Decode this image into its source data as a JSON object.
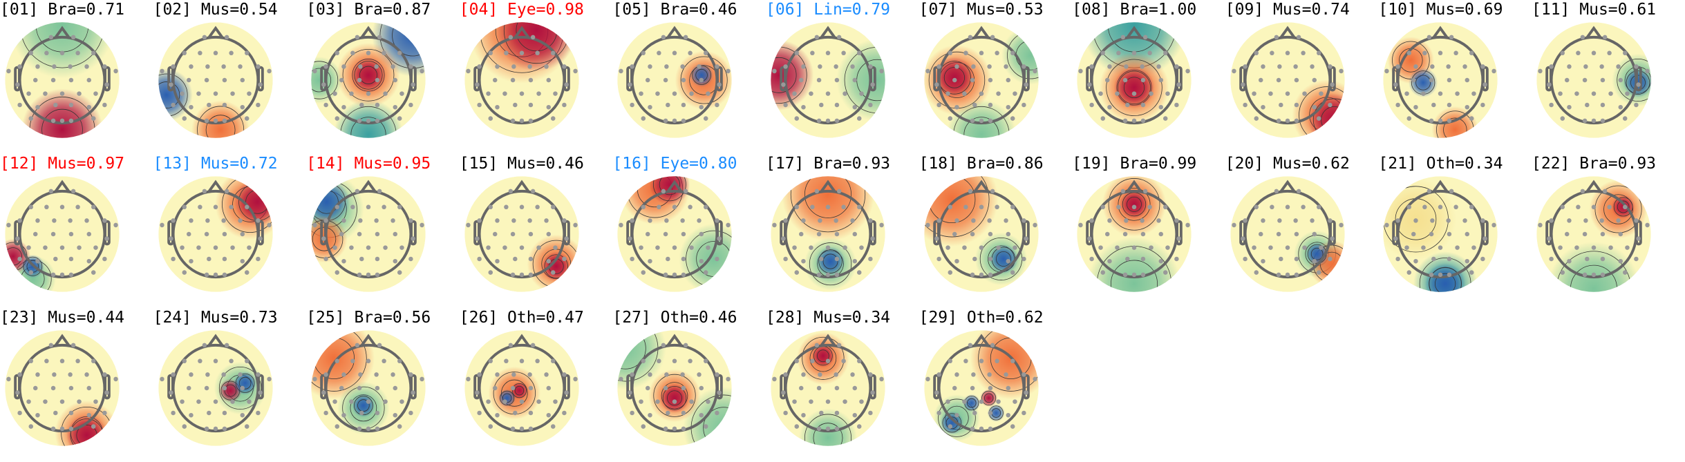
{
  "colors": {
    "default": "#000000",
    "red": "#ff0000",
    "blue": "#1a8cff"
  },
  "colormap": "Spectral_r",
  "components": [
    {
      "index": "01",
      "label": "Bra",
      "score": "0.71",
      "color": "default"
    },
    {
      "index": "02",
      "label": "Mus",
      "score": "0.54",
      "color": "default"
    },
    {
      "index": "03",
      "label": "Bra",
      "score": "0.87",
      "color": "default"
    },
    {
      "index": "04",
      "label": "Eye",
      "score": "0.98",
      "color": "red"
    },
    {
      "index": "05",
      "label": "Bra",
      "score": "0.46",
      "color": "default"
    },
    {
      "index": "06",
      "label": "Lin",
      "score": "0.79",
      "color": "blue"
    },
    {
      "index": "07",
      "label": "Mus",
      "score": "0.53",
      "color": "default"
    },
    {
      "index": "08",
      "label": "Bra",
      "score": "1.00",
      "color": "default"
    },
    {
      "index": "09",
      "label": "Mus",
      "score": "0.74",
      "color": "default"
    },
    {
      "index": "10",
      "label": "Mus",
      "score": "0.69",
      "color": "default"
    },
    {
      "index": "11",
      "label": "Mus",
      "score": "0.61",
      "color": "default"
    },
    {
      "index": "12",
      "label": "Mus",
      "score": "0.97",
      "color": "red"
    },
    {
      "index": "13",
      "label": "Mus",
      "score": "0.72",
      "color": "blue"
    },
    {
      "index": "14",
      "label": "Mus",
      "score": "0.95",
      "color": "red"
    },
    {
      "index": "15",
      "label": "Mus",
      "score": "0.46",
      "color": "default"
    },
    {
      "index": "16",
      "label": "Eye",
      "score": "0.80",
      "color": "blue"
    },
    {
      "index": "17",
      "label": "Bra",
      "score": "0.93",
      "color": "default"
    },
    {
      "index": "18",
      "label": "Bra",
      "score": "0.86",
      "color": "default"
    },
    {
      "index": "19",
      "label": "Bra",
      "score": "0.99",
      "color": "default"
    },
    {
      "index": "20",
      "label": "Mus",
      "score": "0.62",
      "color": "default"
    },
    {
      "index": "21",
      "label": "Oth",
      "score": "0.34",
      "color": "default"
    },
    {
      "index": "22",
      "label": "Bra",
      "score": "0.93",
      "color": "default"
    },
    {
      "index": "23",
      "label": "Mus",
      "score": "0.44",
      "color": "default"
    },
    {
      "index": "24",
      "label": "Mus",
      "score": "0.73",
      "color": "default"
    },
    {
      "index": "25",
      "label": "Bra",
      "score": "0.56",
      "color": "default"
    },
    {
      "index": "26",
      "label": "Oth",
      "score": "0.47",
      "color": "default"
    },
    {
      "index": "27",
      "label": "Oth",
      "score": "0.46",
      "color": "default"
    },
    {
      "index": "28",
      "label": "Mus",
      "score": "0.34",
      "color": "default"
    },
    {
      "index": "29",
      "label": "Oth",
      "score": "0.62",
      "color": "default"
    }
  ]
}
